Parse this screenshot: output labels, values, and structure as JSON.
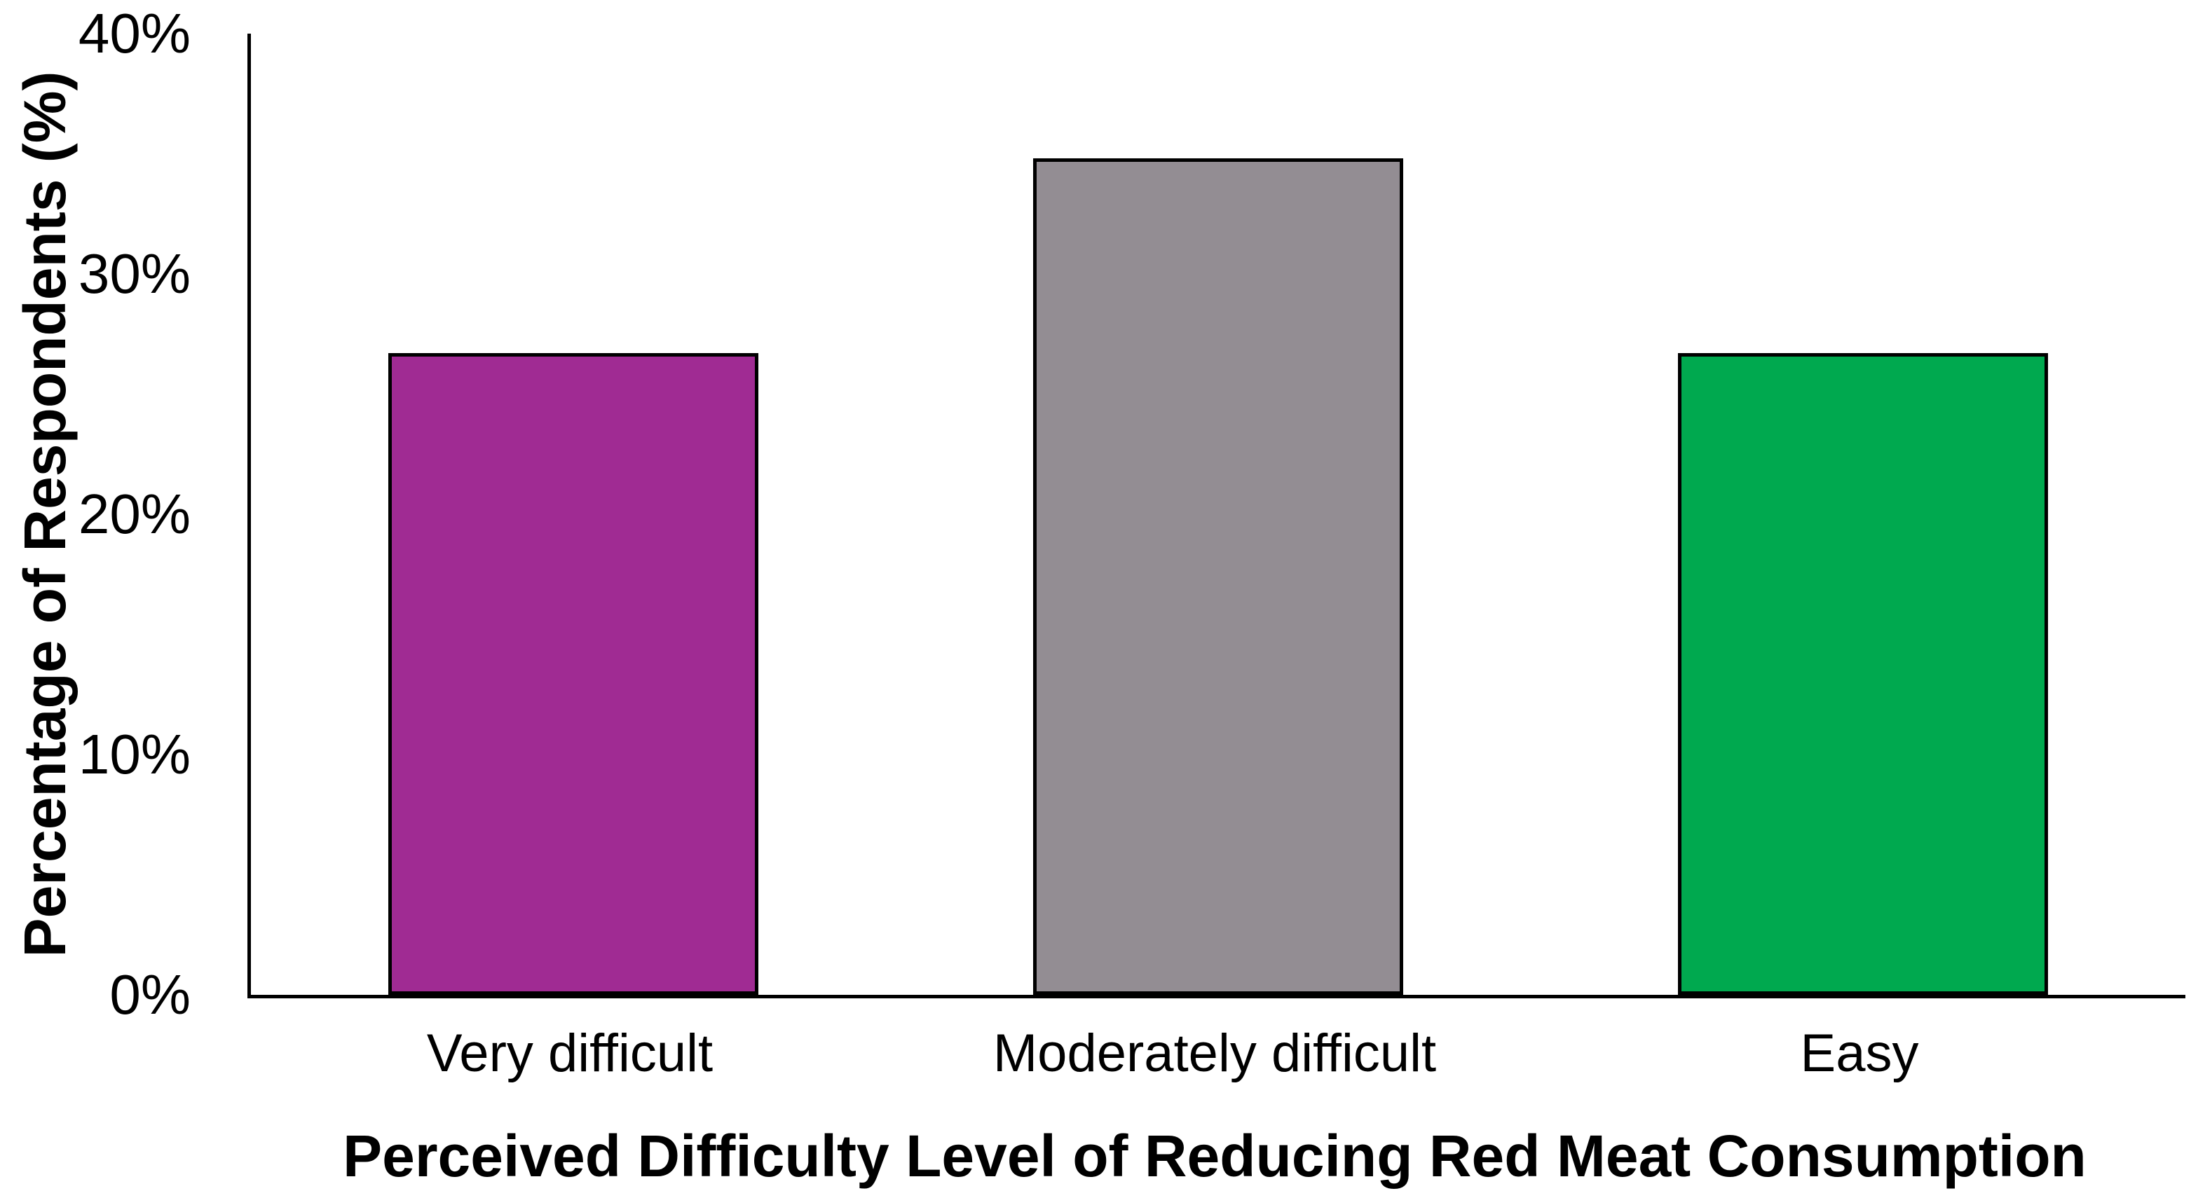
{
  "chart_data": {
    "type": "bar",
    "categories": [
      "Very difficult",
      "Moderately difficult",
      "Easy"
    ],
    "values": [
      26.7,
      34.8,
      26.7
    ],
    "value_unit": "%",
    "bar_colors": [
      "#A02B93",
      "#938D93",
      "#00A94F"
    ],
    "bar_border_color": "#000000",
    "xlabel": "Perceived Difficulty Level of Reducing Red Meat Consumption",
    "ylabel": "Percentage of Respondents (%)",
    "ylim": [
      0,
      40
    ],
    "yticks": [
      0,
      10,
      20,
      30,
      40
    ],
    "ytick_labels": [
      "0%",
      "10%",
      "20%",
      "30%",
      "40%"
    ],
    "grid": false,
    "legend": false,
    "axis_color": "#000000",
    "background_color": "#FFFFFF"
  }
}
